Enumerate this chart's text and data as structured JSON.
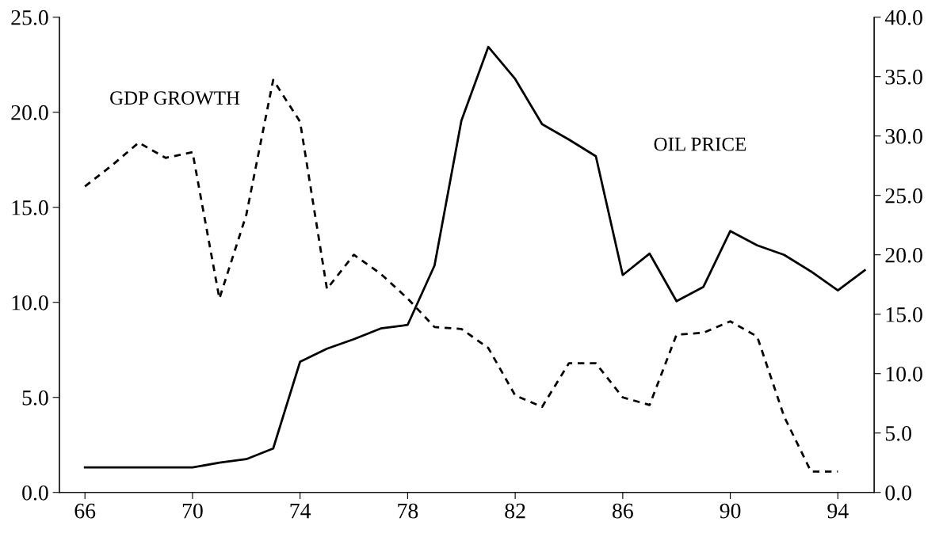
{
  "chart_data": {
    "type": "line",
    "x": [
      66,
      67,
      68,
      69,
      70,
      71,
      72,
      73,
      74,
      75,
      76,
      77,
      78,
      79,
      80,
      81,
      82,
      83,
      84,
      85,
      86,
      87,
      88,
      89,
      90,
      91,
      92,
      93,
      94,
      95
    ],
    "series": [
      {
        "name": "GDP GROWTH",
        "color": "#000000",
        "line_style": "dashed",
        "values": [
          16.1,
          17.2,
          18.4,
          17.6,
          17.9,
          10.2,
          14.6,
          21.7,
          19.5,
          10.7,
          12.5,
          11.5,
          10.2,
          8.7,
          8.6,
          7.6,
          5.1,
          4.5,
          6.8,
          6.8,
          5.0,
          4.6,
          8.3,
          8.4,
          9.0,
          8.2,
          4.0,
          1.1,
          1.1,
          null
        ]
      },
      {
        "name": "OIL PRICE",
        "color": "#000000",
        "line_style": "solid",
        "axis": "y2",
        "values": [
          2.1,
          2.1,
          2.1,
          2.1,
          2.1,
          2.5,
          2.8,
          3.7,
          11.0,
          12.1,
          12.9,
          13.8,
          14.1,
          19.1,
          31.3,
          37.5,
          34.8,
          31.0,
          29.7,
          28.3,
          18.3,
          20.1,
          16.1,
          17.3,
          22.0,
          20.8,
          20.0,
          18.6,
          17.0,
          18.7
        ]
      }
    ],
    "xlim": [
      65.05,
      95.35
    ],
    "xticks": [
      66,
      70,
      74,
      78,
      82,
      86,
      90,
      94
    ],
    "ylim": [
      0,
      25
    ],
    "yticks": [
      {
        "value": 0,
        "label": "0.0"
      },
      {
        "value": 5,
        "label": "5.0"
      },
      {
        "value": 10,
        "label": "10.0"
      },
      {
        "value": 15,
        "label": "15.0"
      },
      {
        "value": 20,
        "label": "20.0"
      },
      {
        "value": 25,
        "label": "25.0"
      }
    ],
    "y2lim": [
      0,
      40
    ],
    "y2ticks": [
      {
        "value": 0,
        "label": "0.0"
      },
      {
        "value": 5,
        "label": "5.0"
      },
      {
        "value": 10,
        "label": "10.0"
      },
      {
        "value": 15,
        "label": "15.0"
      },
      {
        "value": 20,
        "label": "20.0"
      },
      {
        "value": 25,
        "label": "25.0"
      },
      {
        "value": 30,
        "label": "30.0"
      },
      {
        "value": 35,
        "label": "35.0"
      },
      {
        "value": 40,
        "label": "40.0"
      }
    ],
    "grid": false
  }
}
